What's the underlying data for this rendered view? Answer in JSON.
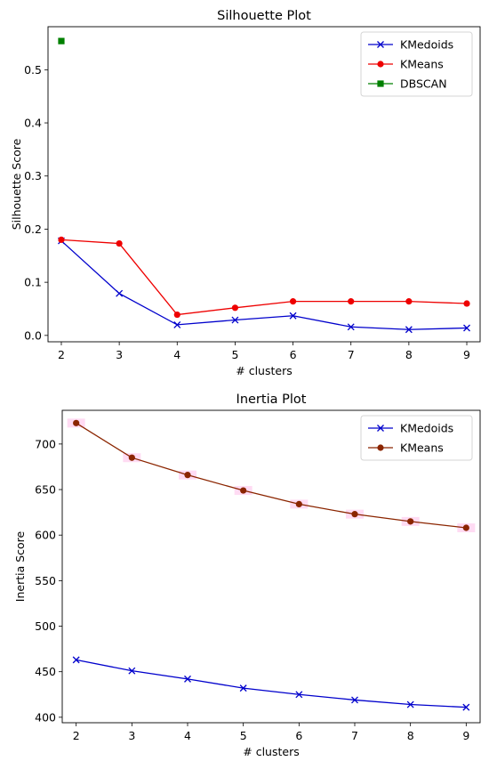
{
  "chart_data": [
    {
      "type": "line",
      "title": "Silhouette Plot",
      "xlabel": "# clusters",
      "ylabel": "Silhouette Score",
      "x": [
        2,
        3,
        4,
        5,
        6,
        7,
        8,
        9
      ],
      "xlim": [
        1.77,
        9.23
      ],
      "ylim": [
        -0.012,
        0.581
      ],
      "xticks": [
        2,
        3,
        4,
        5,
        6,
        7,
        8,
        9
      ],
      "yticks": [
        0.0,
        0.1,
        0.2,
        0.3,
        0.4,
        0.5
      ],
      "ytick_labels": [
        "0.0",
        "0.1",
        "0.2",
        "0.3",
        "0.4",
        "0.5"
      ],
      "legend": "top-right",
      "grid": false,
      "series": [
        {
          "name": "KMedoids",
          "marker": "x",
          "color": "#0000cc",
          "x": [
            2,
            3,
            4,
            5,
            6,
            7,
            8,
            9
          ],
          "values": [
            0.178,
            0.079,
            0.02,
            0.029,
            0.037,
            0.016,
            0.011,
            0.014
          ]
        },
        {
          "name": "KMeans",
          "marker": "o",
          "color": "#ee0000",
          "x": [
            2,
            3,
            4,
            5,
            6,
            7,
            8,
            9
          ],
          "values": [
            0.18,
            0.173,
            0.039,
            0.052,
            0.064,
            0.064,
            0.064,
            0.06
          ]
        },
        {
          "name": "DBSCAN",
          "marker": "s",
          "color": "#008000",
          "x": [
            2
          ],
          "values": [
            0.554
          ]
        }
      ]
    },
    {
      "type": "line",
      "title": "Inertia Plot",
      "xlabel": "# clusters",
      "ylabel": "Inertia Score",
      "x": [
        2,
        3,
        4,
        5,
        6,
        7,
        8,
        9
      ],
      "xlim": [
        1.75,
        9.25
      ],
      "ylim": [
        394,
        737
      ],
      "xticks": [
        2,
        3,
        4,
        5,
        6,
        7,
        8,
        9
      ],
      "yticks": [
        400,
        450,
        500,
        550,
        600,
        650,
        700
      ],
      "ytick_labels": [
        "400",
        "450",
        "500",
        "550",
        "600",
        "650",
        "700"
      ],
      "legend": "top-right",
      "grid": false,
      "series": [
        {
          "name": "KMedoids",
          "marker": "x",
          "color": "#0000cc",
          "x": [
            2,
            3,
            4,
            5,
            6,
            7,
            8,
            9
          ],
          "values": [
            463,
            451,
            442,
            432,
            425,
            419,
            414,
            411
          ]
        },
        {
          "name": "KMeans",
          "marker": "o",
          "color": "#8b2500",
          "band_color": "#ff99dd",
          "x": [
            2,
            3,
            4,
            5,
            6,
            7,
            8,
            9
          ],
          "values": [
            723,
            685,
            666,
            649,
            634,
            623,
            615,
            608
          ]
        }
      ]
    }
  ]
}
